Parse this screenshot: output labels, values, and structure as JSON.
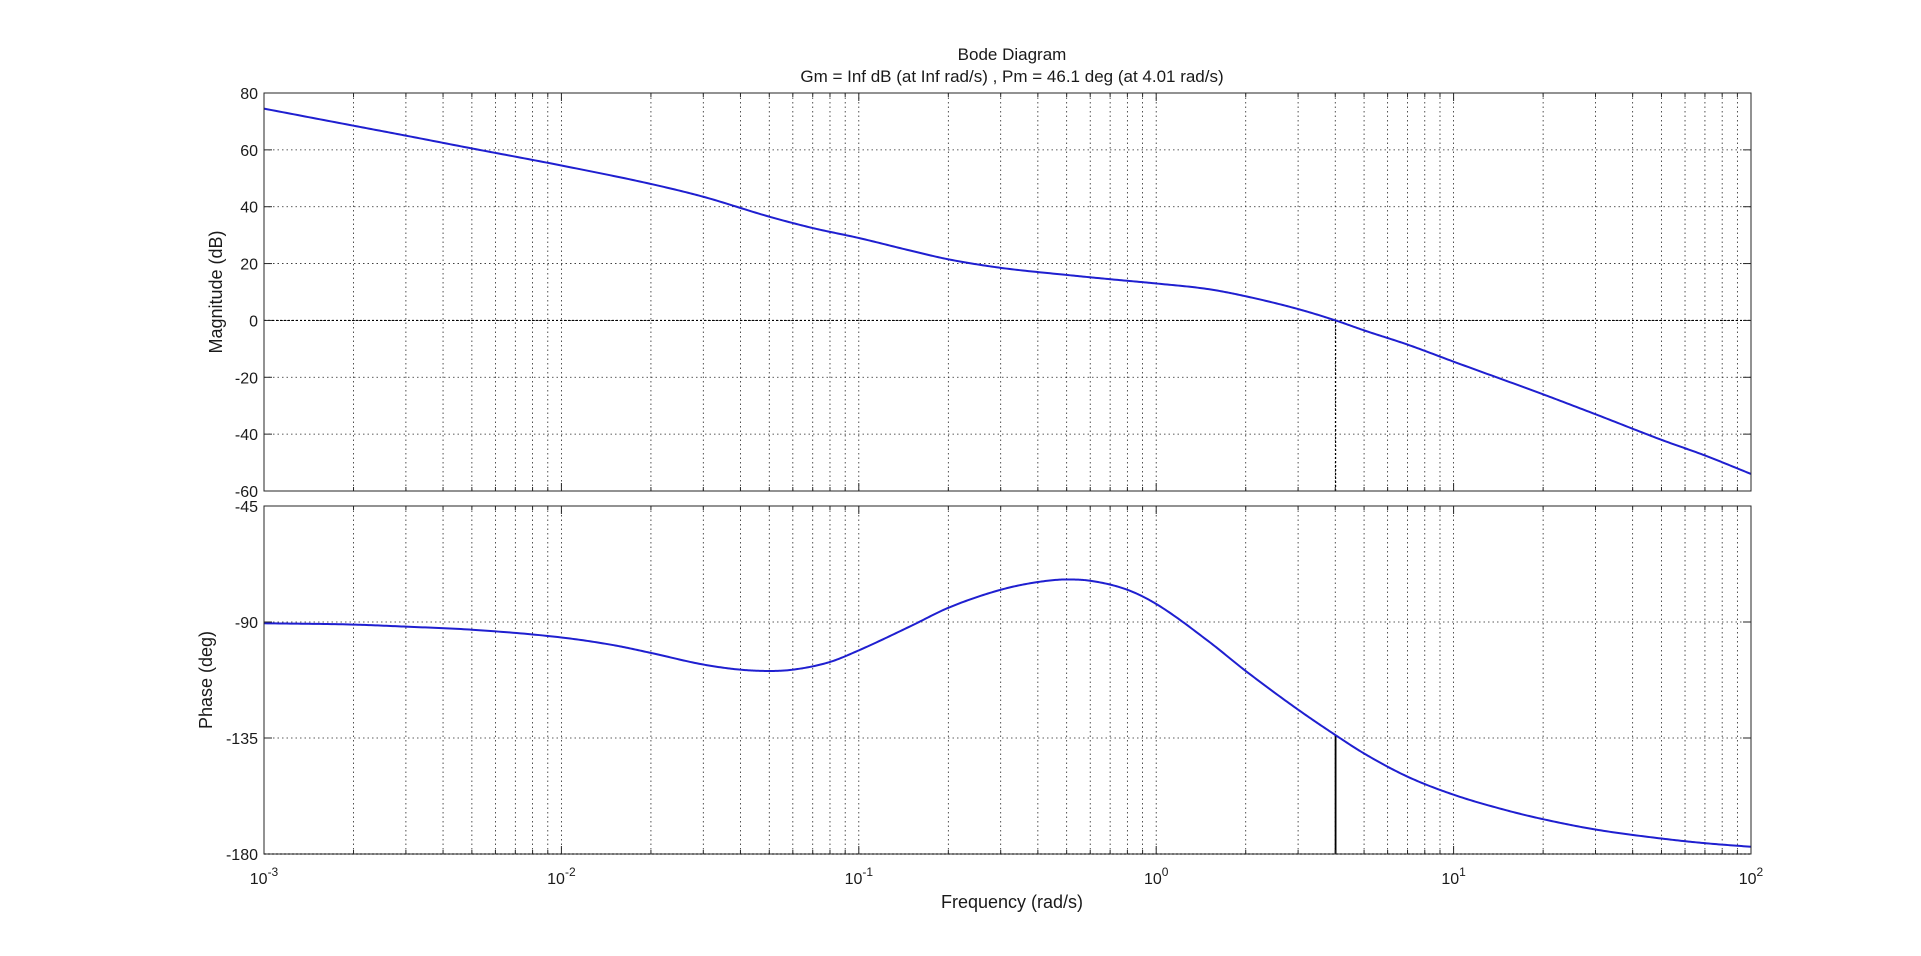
{
  "colors": {
    "background": "#ffffff",
    "axes": "#262626",
    "grid": "#262626",
    "curve": "#1f1fd0",
    "margin_marker": "#000000"
  },
  "chart_data": [
    {
      "type": "line",
      "panel": "magnitude",
      "title": "Bode Diagram",
      "subtitle": "Gm = Inf dB (at Inf rad/s) ,  Pm = 46.1 deg (at 4.01 rad/s)",
      "xlabel": "",
      "ylabel": "Magnitude (dB)",
      "x_scale": "log",
      "xlim": [
        0.001,
        100
      ],
      "ylim": [
        -60,
        80
      ],
      "y_ticks": [
        "80",
        "60",
        "40",
        "20",
        "0",
        "-20",
        "-40",
        "-60"
      ],
      "grid": true,
      "series": [
        {
          "x": [
            0.001,
            0.002,
            0.003,
            0.005,
            0.01,
            0.02,
            0.03,
            0.05,
            0.07,
            0.1,
            0.15,
            0.2,
            0.3,
            0.5,
            0.7,
            1,
            1.5,
            2,
            3,
            4.01,
            5,
            7,
            10,
            20,
            30,
            50,
            70,
            100
          ],
          "y": [
            74.5,
            68.5,
            65.0,
            60.5,
            54.5,
            48.0,
            43.5,
            36.5,
            32.5,
            29.0,
            24.5,
            21.5,
            18.5,
            16.0,
            14.5,
            13.0,
            11.0,
            8.5,
            4.0,
            0.0,
            -3.5,
            -8.5,
            -14.5,
            -26.0,
            -33.0,
            -42.0,
            -47.5,
            -54.0
          ]
        }
      ],
      "reference_lines": [
        {
          "orientation": "horizontal",
          "y": 0
        },
        {
          "orientation": "vertical",
          "x": 4.01,
          "y_from": -60,
          "y_to": 0
        }
      ]
    },
    {
      "type": "line",
      "panel": "phase",
      "xlabel": "Frequency  (rad/s)",
      "ylabel": "Phase (deg)",
      "x_scale": "log",
      "xlim": [
        0.001,
        100
      ],
      "ylim": [
        -180,
        -45
      ],
      "x_ticks": [
        {
          "base": "10",
          "exp": "-3"
        },
        {
          "base": "10",
          "exp": "-2"
        },
        {
          "base": "10",
          "exp": "-1"
        },
        {
          "base": "10",
          "exp": "0"
        },
        {
          "base": "10",
          "exp": "1"
        },
        {
          "base": "10",
          "exp": "2"
        }
      ],
      "y_ticks": [
        "-45",
        "-90",
        "-135",
        "-180"
      ],
      "grid": true,
      "series": [
        {
          "x": [
            0.001,
            0.002,
            0.003,
            0.005,
            0.01,
            0.015,
            0.02,
            0.03,
            0.04,
            0.05,
            0.06,
            0.08,
            0.1,
            0.15,
            0.2,
            0.3,
            0.4,
            0.5,
            0.6,
            0.8,
            1,
            1.5,
            2,
            3,
            4.01,
            5,
            7,
            10,
            15,
            20,
            30,
            50,
            70,
            100
          ],
          "y": [
            -90.5,
            -91.0,
            -91.8,
            -93.0,
            -96.0,
            -99.0,
            -102.0,
            -106.5,
            -108.5,
            -109.0,
            -108.5,
            -105.5,
            -101.0,
            -91.5,
            -84.5,
            -77.5,
            -74.5,
            -73.5,
            -74.0,
            -77.5,
            -83.0,
            -97.5,
            -109.0,
            -124.0,
            -133.9,
            -141.0,
            -150.0,
            -157.0,
            -163.0,
            -166.5,
            -170.5,
            -174.0,
            -175.8,
            -177.2
          ]
        }
      ],
      "reference_lines": [
        {
          "orientation": "horizontal",
          "y": -180
        },
        {
          "orientation": "vertical",
          "x": 4.01,
          "y_from": -180,
          "y_to": -133.9
        }
      ]
    }
  ]
}
